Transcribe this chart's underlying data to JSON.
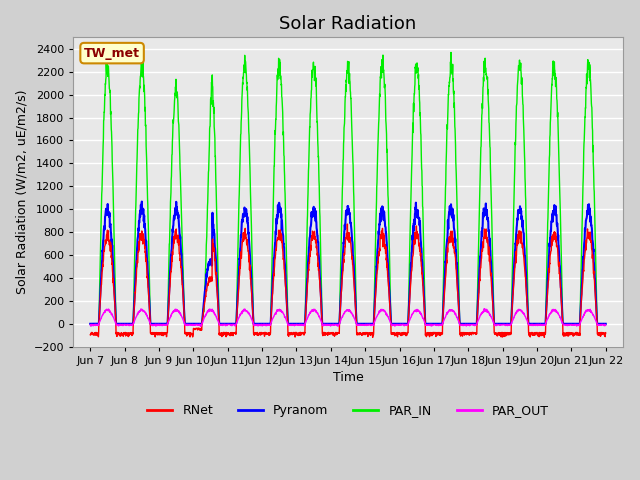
{
  "title": "Solar Radiation",
  "ylabel": "Solar Radiation (W/m2, uE/m2/s)",
  "xlabel": "Time",
  "ylim": [
    -200,
    2500
  ],
  "yticks": [
    -200,
    0,
    200,
    400,
    600,
    800,
    1000,
    1200,
    1400,
    1600,
    1800,
    2000,
    2200,
    2400
  ],
  "xtick_labels": [
    "Jun 7",
    "Jun 8",
    "Jun 9",
    "Jun 10",
    "Jun 11",
    "Jun 12",
    "Jun 13",
    "Jun 14",
    "Jun 15",
    "Jun 16",
    "Jun 17",
    "Jun 18",
    "Jun 19",
    "Jun 20",
    "Jun 21",
    "Jun 22"
  ],
  "xtick_positions": [
    7,
    8,
    9,
    10,
    11,
    12,
    13,
    14,
    15,
    16,
    17,
    18,
    19,
    20,
    21,
    22
  ],
  "legend_label": "TW_met",
  "series": {
    "RNet": {
      "color": "#ff0000",
      "label": "RNet"
    },
    "Pyranom": {
      "color": "#0000ff",
      "label": "Pyranom"
    },
    "PAR_IN": {
      "color": "#00ee00",
      "label": "PAR_IN"
    },
    "PAR_OUT": {
      "color": "#ff00ff",
      "label": "PAR_OUT"
    }
  },
  "plot_bg_color": "#e8e8e8",
  "fig_bg_color": "#d0d0d0",
  "grid_color": "#ffffff",
  "title_fontsize": 13,
  "label_fontsize": 9
}
